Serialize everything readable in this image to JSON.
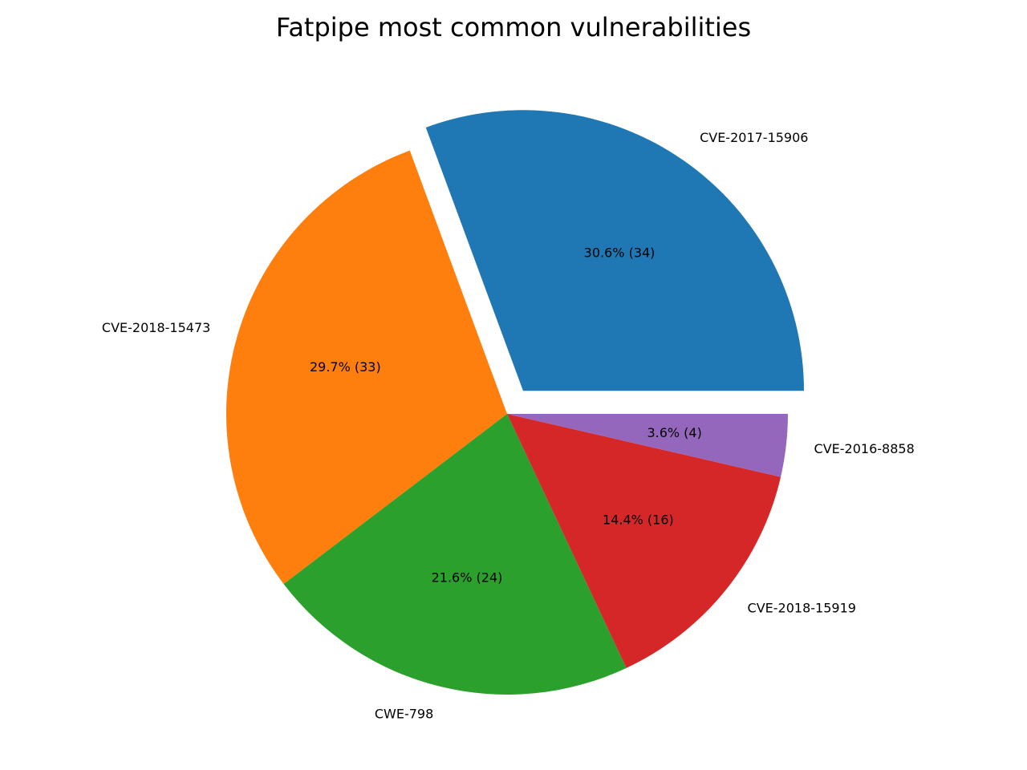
{
  "chart_data": {
    "type": "pie",
    "title": "Fatpipe most common vulnerabilities",
    "start_angle_deg": 0,
    "direction": "counterclockwise",
    "exploded": [
      "CVE-2017-15906"
    ],
    "slices": [
      {
        "label": "CVE-2017-15906",
        "value": 34,
        "percent_label": "30.6% (34)",
        "color": "#1f77b4"
      },
      {
        "label": "CVE-2018-15473",
        "value": 33,
        "percent_label": "29.7% (33)",
        "color": "#ff7f0e"
      },
      {
        "label": "CWE-798",
        "value": 24,
        "percent_label": "21.6% (24)",
        "color": "#2ca02c"
      },
      {
        "label": "CVE-2018-15919",
        "value": 16,
        "percent_label": "14.4% (16)",
        "color": "#d62728"
      },
      {
        "label": "CVE-2016-8858",
        "value": 4,
        "percent_label": "3.6% (4)",
        "color": "#9467bd"
      }
    ]
  }
}
